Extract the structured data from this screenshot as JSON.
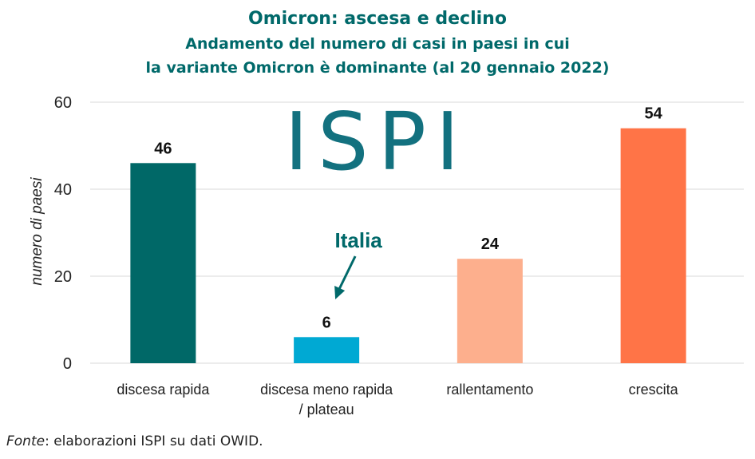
{
  "title": "Omicron: ascesa e declino",
  "subtitle_line1": "Andamento del numero di casi in paesi in cui",
  "subtitle_line2": "la variante Omicron è dominante (al 20 gennaio 2022)",
  "logo_text": "ISPI",
  "annotation": "Italia",
  "source_label": "Fonte",
  "source_text": ": elaborazioni ISPI su dati OWID.",
  "colors": {
    "title": "#00696a",
    "logo": "#13717f",
    "grid": "#d9d9d9",
    "axis": "#222222"
  },
  "chart_data": {
    "type": "bar",
    "categories": [
      [
        "discesa rapida"
      ],
      [
        "discesa meno rapida",
        "/ plateau"
      ],
      [
        "rallentamento"
      ],
      [
        "crescita"
      ]
    ],
    "values": [
      46,
      6,
      24,
      54
    ],
    "bar_colors": [
      "#006867",
      "#00a9d3",
      "#fdaf8d",
      "#ff7447"
    ],
    "ylabel": "numero di paesi",
    "ylim": [
      0,
      60
    ],
    "yticks": [
      0,
      20,
      40,
      60
    ],
    "grid": true,
    "data_labels": true,
    "annotated_category": 1
  }
}
